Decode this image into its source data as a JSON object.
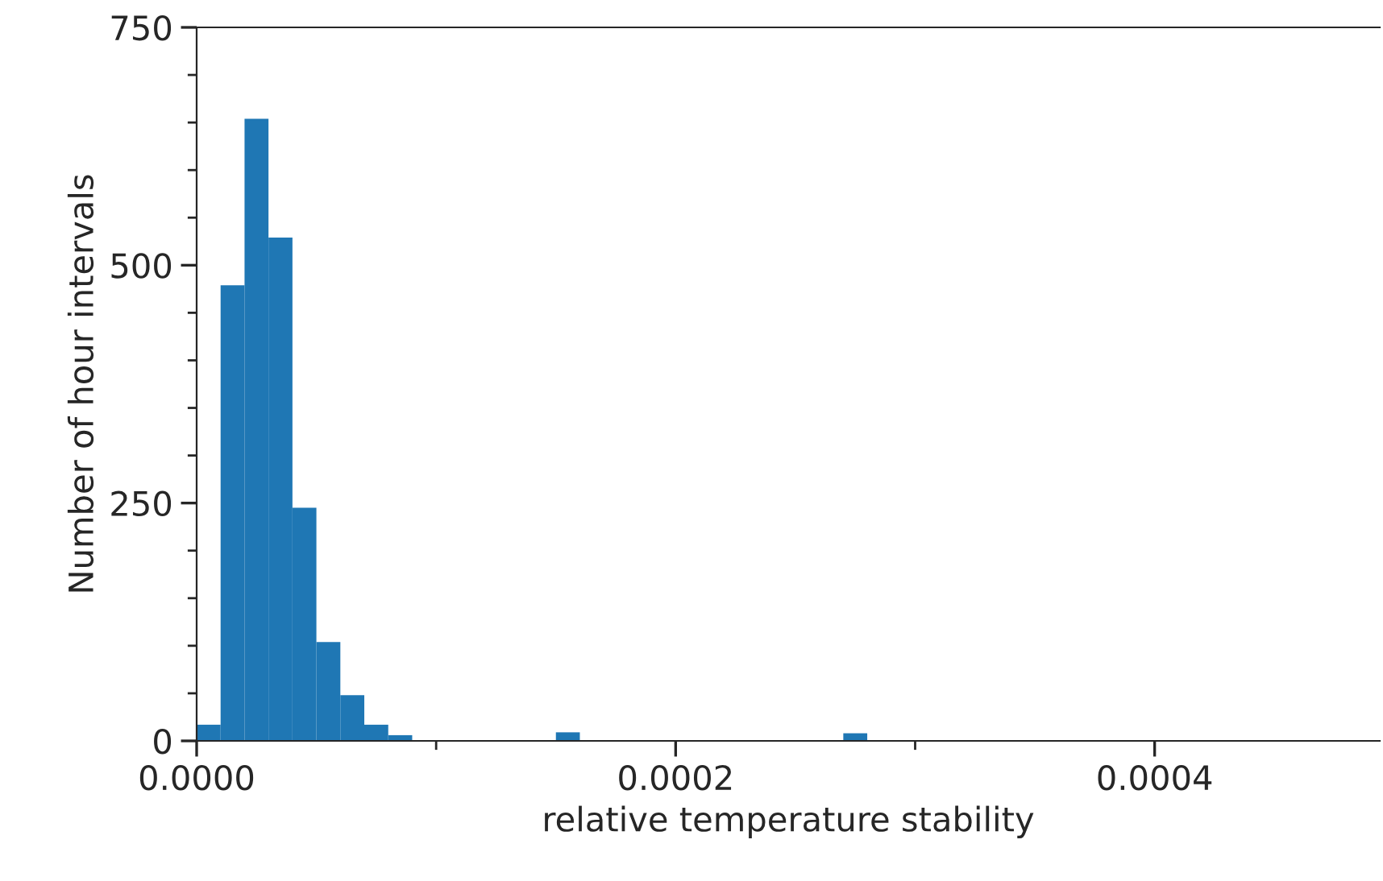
{
  "chart_data": {
    "type": "histogram",
    "xlabel": "relative temperature stability",
    "ylabel": "Number of hour intervals",
    "color": "#1f77b4",
    "bins": [
      0,
      1e-05,
      2e-05,
      3e-05,
      4e-05,
      5e-05,
      6e-05,
      7e-05,
      8e-05,
      9e-05,
      0.0001,
      0.00011,
      0.00012,
      0.00013,
      0.00014,
      0.00015,
      0.00016,
      0.00017,
      0.00018,
      0.00019,
      0.0002,
      0.00021,
      0.00022,
      0.00023,
      0.00024,
      0.00025,
      0.00026,
      0.00027,
      0.00028,
      0.00029,
      0.0003,
      0.00031,
      0.00032,
      0.00033,
      0.00034,
      0.00035,
      0.00036,
      0.00037,
      0.00038,
      0.00039,
      0.0004,
      0.00041,
      0.00042,
      0.00043,
      0.00044,
      0.00045,
      0.00046,
      0.00047,
      0.00048,
      0.00049
    ],
    "values": [
      17,
      479,
      654,
      529,
      245,
      104,
      48,
      17,
      6,
      null,
      0,
      0,
      0,
      0,
      0,
      9,
      null,
      0,
      0,
      0,
      0,
      0,
      0,
      0,
      0,
      0,
      0,
      8,
      null,
      0,
      0,
      0,
      0,
      0,
      0,
      0,
      0,
      0,
      0,
      0,
      0,
      0,
      0,
      0,
      0,
      0,
      0,
      0,
      0
    ],
    "xlim": [
      0,
      0.000494
    ],
    "ylim": [
      0,
      750
    ],
    "xticks": [
      {
        "value": 0,
        "label": "0.0000"
      },
      {
        "value": 0.0001,
        "label": null
      },
      {
        "value": 0.0002,
        "label": "0.0002"
      },
      {
        "value": 0.0003,
        "label": null
      },
      {
        "value": 0.0004,
        "label": "0.0004"
      }
    ],
    "yticks": [
      0,
      {
        "value": 50,
        "label": null
      },
      {
        "value": 100,
        "label": null
      },
      {
        "value": 150,
        "label": null
      },
      {
        "value": 200,
        "label": null
      },
      250,
      {
        "value": 300,
        "label": null
      },
      {
        "value": 350,
        "label": null
      },
      {
        "value": 400,
        "label": null
      },
      {
        "value": 450,
        "label": null
      },
      500,
      {
        "value": 550,
        "label": null
      },
      {
        "value": 600,
        "label": null
      },
      {
        "value": 650,
        "label": null
      },
      {
        "value": 700,
        "label": null
      },
      750
    ],
    "grid": false,
    "legend": false
  }
}
